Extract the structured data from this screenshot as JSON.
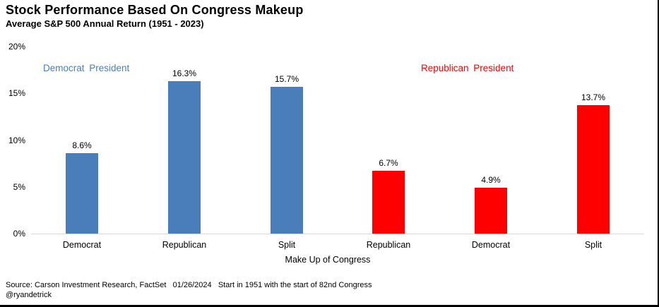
{
  "chart_data": {
    "type": "bar",
    "title": "Stock Performance Based On Congress Makeup",
    "subtitle": "Average S&P 500 Annual Return (1951 - 2023)",
    "xlabel": "Make Up of Congress",
    "ylabel": "",
    "ylim": [
      0,
      20
    ],
    "yticks": [
      0,
      5,
      10,
      15,
      20
    ],
    "ytick_labels": [
      "0%",
      "5%",
      "10%",
      "15%",
      "20%"
    ],
    "grid": false,
    "legend_position": "inside-plot-top",
    "axis_line_color": "#d9d9d9",
    "categories": [
      "Democrat",
      "Republican",
      "Split",
      "Republican",
      "Democrat",
      "Split"
    ],
    "values": [
      8.6,
      16.3,
      15.7,
      6.7,
      4.9,
      13.7
    ],
    "value_labels": [
      "8.6%",
      "16.3%",
      "15.7%",
      "6.7%",
      "4.9%",
      "13.7%"
    ],
    "bar_colors": [
      "#4a7ebb",
      "#4a7ebb",
      "#4a7ebb",
      "#ff0000",
      "#ff0000",
      "#ff0000"
    ],
    "groups": [
      {
        "label": "Democrat President",
        "color": "#4a7ebb"
      },
      {
        "label": "Republican President",
        "color": "#ff0000"
      }
    ]
  },
  "footer": {
    "source": "Source: Carson Investment Research, FactSet   01/26/2024   Start in 1951 with the start of 82nd Congress",
    "handle": "@ryandetrick"
  }
}
